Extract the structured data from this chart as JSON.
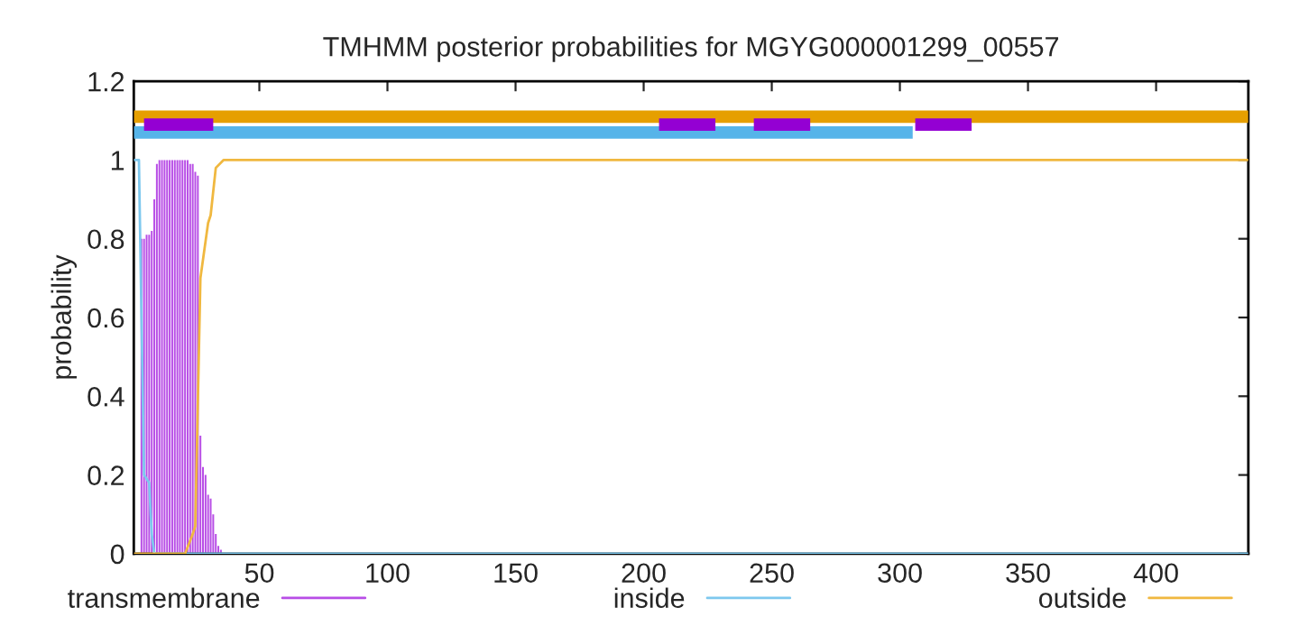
{
  "chart_data": {
    "type": "line",
    "title": "TMHMM posterior probabilities for MGYG000001299_00557",
    "ylabel": "probability",
    "xlim": [
      1,
      436
    ],
    "ylim": [
      0,
      1.2
    ],
    "xticks": [
      50,
      100,
      150,
      200,
      250,
      300,
      350,
      400
    ],
    "yticks": [
      0,
      0.2,
      0.4,
      0.6,
      0.8,
      1,
      1.2
    ],
    "legend": "bottom",
    "grid": false,
    "series": [
      {
        "name": "transmembrane",
        "type": "bar",
        "color": "#b84ee6",
        "x": [
          4,
          5,
          6,
          7,
          8,
          9,
          10,
          11,
          12,
          13,
          14,
          15,
          16,
          17,
          18,
          19,
          20,
          21,
          22,
          23,
          24,
          25,
          26,
          27,
          28,
          29,
          30,
          31,
          32,
          33,
          34,
          35
        ],
        "values": [
          0.8,
          0.8,
          0.81,
          0.81,
          0.82,
          0.9,
          0.99,
          1,
          1,
          1,
          1,
          1,
          1,
          1,
          1,
          1,
          1,
          1,
          1,
          0.99,
          0.99,
          0.97,
          0.96,
          0.3,
          0.22,
          0.2,
          0.15,
          0.14,
          0.1,
          0.05,
          0.02,
          0.01
        ]
      },
      {
        "name": "inside",
        "color": "#7ec8ee",
        "x": [
          1,
          3,
          4,
          5,
          7,
          8,
          9,
          436
        ],
        "values": [
          1,
          1,
          0.6,
          0.2,
          0.18,
          0.05,
          0,
          0
        ]
      },
      {
        "name": "outside",
        "color": "#f0b840",
        "x": [
          1,
          21,
          24,
          25,
          27,
          30,
          31,
          33,
          36,
          436
        ],
        "values": [
          0,
          0,
          0.05,
          0.07,
          0.7,
          0.84,
          0.86,
          0.98,
          1,
          1
        ]
      },
      {
        "type": "line",
        "color": "#e69f00",
        "x": [
          1,
          436
        ],
        "values": [
          1.11,
          1.11
        ]
      },
      {
        "type": "line",
        "color": "#56b4e9",
        "x": [
          1,
          305
        ],
        "values": [
          1.07,
          1.07
        ]
      },
      {
        "type": "line",
        "color": "#9400d3",
        "x": [
          5,
          32
        ],
        "values": [
          1.09,
          1.09
        ]
      },
      {
        "type": "line",
        "color": "#9400d3",
        "x": [
          206,
          228
        ],
        "values": [
          1.09,
          1.09
        ]
      },
      {
        "type": "line",
        "color": "#9400d3",
        "x": [
          243,
          265
        ],
        "values": [
          1.09,
          1.09
        ]
      },
      {
        "type": "line",
        "color": "#9400d3",
        "x": [
          306,
          328
        ],
        "values": [
          1.09,
          1.09
        ]
      }
    ]
  }
}
